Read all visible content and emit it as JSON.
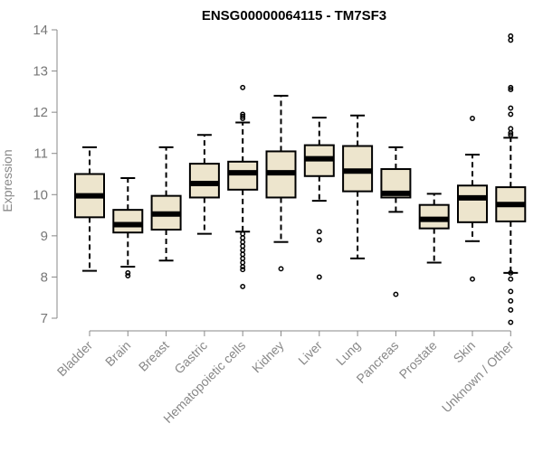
{
  "chart_data": {
    "type": "boxplot",
    "title": "ENSG00000064115 - TM7SF3",
    "xlabel": "",
    "ylabel": "Expression",
    "ylim": [
      7,
      14
    ],
    "yticks": [
      7,
      8,
      9,
      10,
      11,
      12,
      13,
      14
    ],
    "categories": [
      "Bladder",
      "Brain",
      "Breast",
      "Gastric",
      "Hematopoietic cells",
      "Kidney",
      "Liver",
      "Lung",
      "Pancreas",
      "Prostate",
      "Skin",
      "Unknown / Other"
    ],
    "box_fill": "#ede5cd",
    "boxes": [
      {
        "category": "Bladder",
        "whisker_low": 8.15,
        "q1": 9.45,
        "median": 9.97,
        "q3": 10.5,
        "whisker_high": 11.15,
        "outliers": []
      },
      {
        "category": "Brain",
        "whisker_low": 8.25,
        "q1": 9.08,
        "median": 9.27,
        "q3": 9.63,
        "whisker_high": 10.4,
        "outliers": [
          8.1,
          8.03
        ]
      },
      {
        "category": "Breast",
        "whisker_low": 8.4,
        "q1": 9.15,
        "median": 9.53,
        "q3": 9.97,
        "whisker_high": 11.15,
        "outliers": []
      },
      {
        "category": "Gastric",
        "whisker_low": 9.05,
        "q1": 9.93,
        "median": 10.27,
        "q3": 10.75,
        "whisker_high": 11.45,
        "outliers": []
      },
      {
        "category": "Hematopoietic cells",
        "whisker_low": 9.1,
        "q1": 10.12,
        "median": 10.53,
        "q3": 10.8,
        "whisker_high": 11.75,
        "outliers": [
          12.6,
          11.95,
          11.9,
          11.85,
          9.05,
          8.95,
          8.85,
          8.75,
          8.65,
          8.55,
          8.45,
          8.35,
          8.25,
          8.18,
          7.77
        ]
      },
      {
        "category": "Kidney",
        "whisker_low": 8.85,
        "q1": 9.93,
        "median": 10.53,
        "q3": 11.05,
        "whisker_high": 12.4,
        "outliers": [
          8.2
        ]
      },
      {
        "category": "Liver",
        "whisker_low": 9.85,
        "q1": 10.45,
        "median": 10.87,
        "q3": 11.2,
        "whisker_high": 11.87,
        "outliers": [
          9.1,
          8.9,
          8.0
        ]
      },
      {
        "category": "Lung",
        "whisker_low": 8.45,
        "q1": 10.08,
        "median": 10.57,
        "q3": 11.18,
        "whisker_high": 11.92,
        "outliers": []
      },
      {
        "category": "Pancreas",
        "whisker_low": 9.58,
        "q1": 9.93,
        "median": 10.03,
        "q3": 10.62,
        "whisker_high": 11.15,
        "outliers": [
          7.58
        ]
      },
      {
        "category": "Prostate",
        "whisker_low": 8.35,
        "q1": 9.18,
        "median": 9.4,
        "q3": 9.75,
        "whisker_high": 10.02,
        "outliers": []
      },
      {
        "category": "Skin",
        "whisker_low": 8.87,
        "q1": 9.33,
        "median": 9.92,
        "q3": 10.22,
        "whisker_high": 10.97,
        "outliers": [
          11.85,
          7.95
        ]
      },
      {
        "category": "Unknown / Other",
        "whisker_low": 8.1,
        "q1": 9.35,
        "median": 9.76,
        "q3": 10.18,
        "whisker_high": 11.38,
        "outliers": [
          13.85,
          13.75,
          12.6,
          12.55,
          12.1,
          11.95,
          11.6,
          11.5,
          11.45,
          8.1,
          7.95,
          7.65,
          7.42,
          7.2,
          6.9
        ]
      }
    ]
  }
}
